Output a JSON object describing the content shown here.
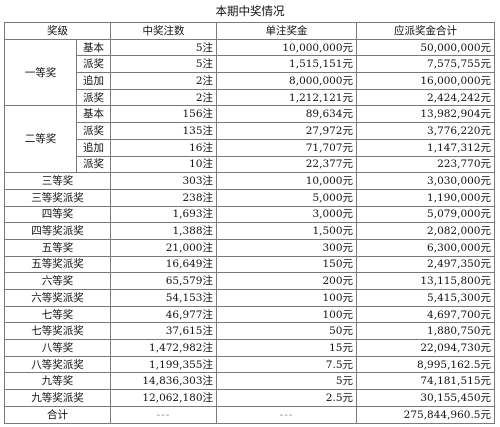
{
  "title": "本期中奖情况",
  "headers": [
    "奖级",
    "中奖注数",
    "单注奖金",
    "应派奖金合计"
  ],
  "first_prize": {
    "group": "一等奖",
    "rows": [
      {
        "sub": "基本",
        "count": "5注",
        "unit": "10,000,000元",
        "total": "50,000,000元"
      },
      {
        "sub": "派奖",
        "count": "5注",
        "unit": "1,515,151元",
        "total": "7,575,755元"
      },
      {
        "sub": "追加",
        "count": "2注",
        "unit": "8,000,000元",
        "total": "16,000,000元"
      },
      {
        "sub": "派奖",
        "count": "2注",
        "unit": "1,212,121元",
        "total": "2,424,242元"
      }
    ]
  },
  "second_prize": {
    "group": "二等奖",
    "rows": [
      {
        "sub": "基本",
        "count": "156注",
        "unit": "89,634元",
        "total": "13,982,904元"
      },
      {
        "sub": "派奖",
        "count": "135注",
        "unit": "27,972元",
        "total": "3,776,220元"
      },
      {
        "sub": "追加",
        "count": "16注",
        "unit": "71,707元",
        "total": "1,147,312元"
      },
      {
        "sub": "派奖",
        "count": "10注",
        "unit": "22,377元",
        "total": "223,770元"
      }
    ]
  },
  "rows": [
    {
      "level": "三等奖",
      "count": "303注",
      "unit": "10,000元",
      "total": "3,030,000元"
    },
    {
      "level": "三等奖派奖",
      "count": "238注",
      "unit": "5,000元",
      "total": "1,190,000元"
    },
    {
      "level": "四等奖",
      "count": "1,693注",
      "unit": "3,000元",
      "total": "5,079,000元"
    },
    {
      "level": "四等奖派奖",
      "count": "1,388注",
      "unit": "1,500元",
      "total": "2,082,000元"
    },
    {
      "level": "五等奖",
      "count": "21,000注",
      "unit": "300元",
      "total": "6,300,000元"
    },
    {
      "level": "五等奖派奖",
      "count": "16,649注",
      "unit": "150元",
      "total": "2,497,350元"
    },
    {
      "level": "六等奖",
      "count": "65,579注",
      "unit": "200元",
      "total": "13,115,800元"
    },
    {
      "level": "六等奖派奖",
      "count": "54,153注",
      "unit": "100元",
      "total": "5,415,300元"
    },
    {
      "level": "七等奖",
      "count": "46,977注",
      "unit": "100元",
      "total": "4,697,700元"
    },
    {
      "level": "七等奖派奖",
      "count": "37,615注",
      "unit": "50元",
      "total": "1,880,750元"
    },
    {
      "level": "八等奖",
      "count": "1,472,982注",
      "unit": "15元",
      "total": "22,094,730元"
    },
    {
      "level": "八等奖派奖",
      "count": "1,199,355注",
      "unit": "7.5元",
      "total": "8,995,162.5元"
    },
    {
      "level": "九等奖",
      "count": "14,836,303注",
      "unit": "5元",
      "total": "74,181,515元"
    },
    {
      "level": "九等奖派奖",
      "count": "12,062,180注",
      "unit": "2.5元",
      "total": "30,155,450元"
    }
  ],
  "summary": {
    "label": "合计",
    "count": "---",
    "unit": "---",
    "total": "275,844,960.5元"
  }
}
